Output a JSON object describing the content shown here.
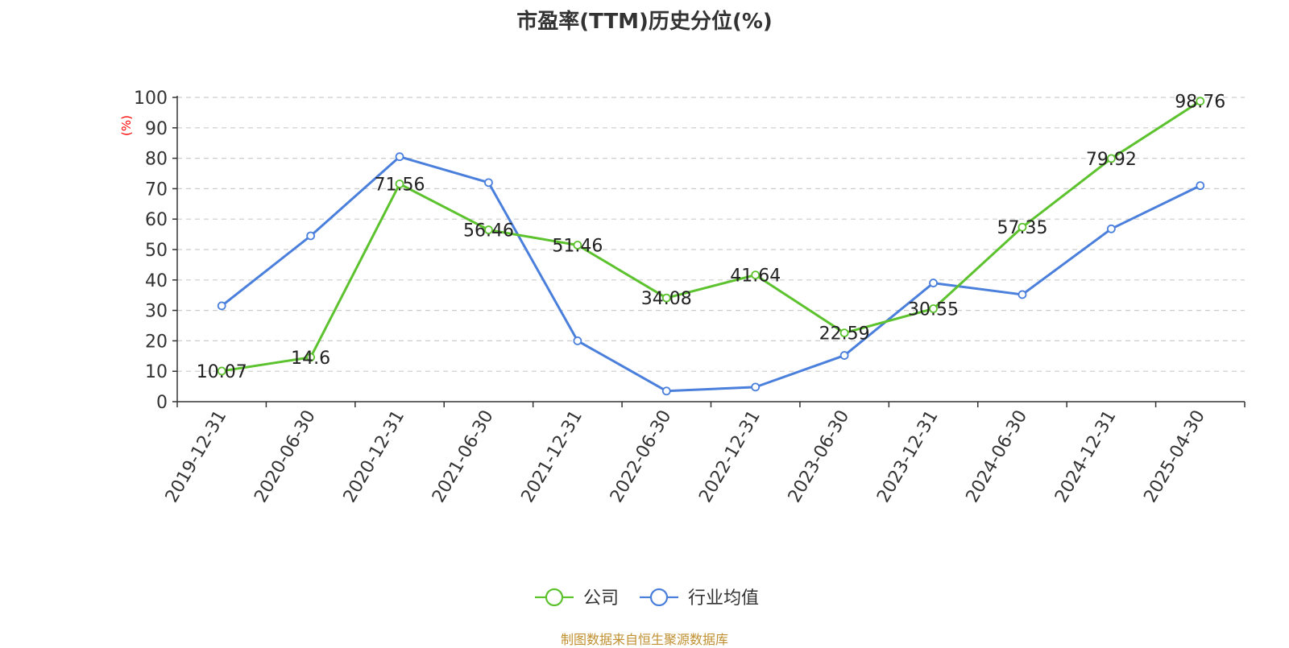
{
  "chart_data": {
    "type": "line",
    "title": "市盈率(TTM)历史分位(%)",
    "ylabel": "(%)",
    "ylim": [
      0,
      100
    ],
    "yticks": [
      0,
      10,
      20,
      30,
      40,
      50,
      60,
      70,
      80,
      90,
      100
    ],
    "grid": true,
    "legend_position": "bottom",
    "categories": [
      "2019-12-31",
      "2020-06-30",
      "2020-12-31",
      "2021-06-30",
      "2021-12-31",
      "2022-06-30",
      "2022-12-31",
      "2023-06-30",
      "2023-12-31",
      "2024-06-30",
      "2024-12-31",
      "2025-04-30"
    ],
    "series": [
      {
        "name": "公司",
        "color": "#5cc22e",
        "show_labels": true,
        "values": [
          10.07,
          14.6,
          71.56,
          56.46,
          51.46,
          34.08,
          41.64,
          22.59,
          30.55,
          57.35,
          79.92,
          98.76
        ]
      },
      {
        "name": "行业均值",
        "color": "#4a7fdc",
        "show_labels": false,
        "values": [
          31.5,
          54.5,
          80.5,
          72.0,
          20.0,
          3.5,
          4.8,
          15.2,
          39.0,
          35.2,
          56.8,
          71.0
        ]
      }
    ]
  },
  "source": "制图数据来自恒生聚源数据库"
}
